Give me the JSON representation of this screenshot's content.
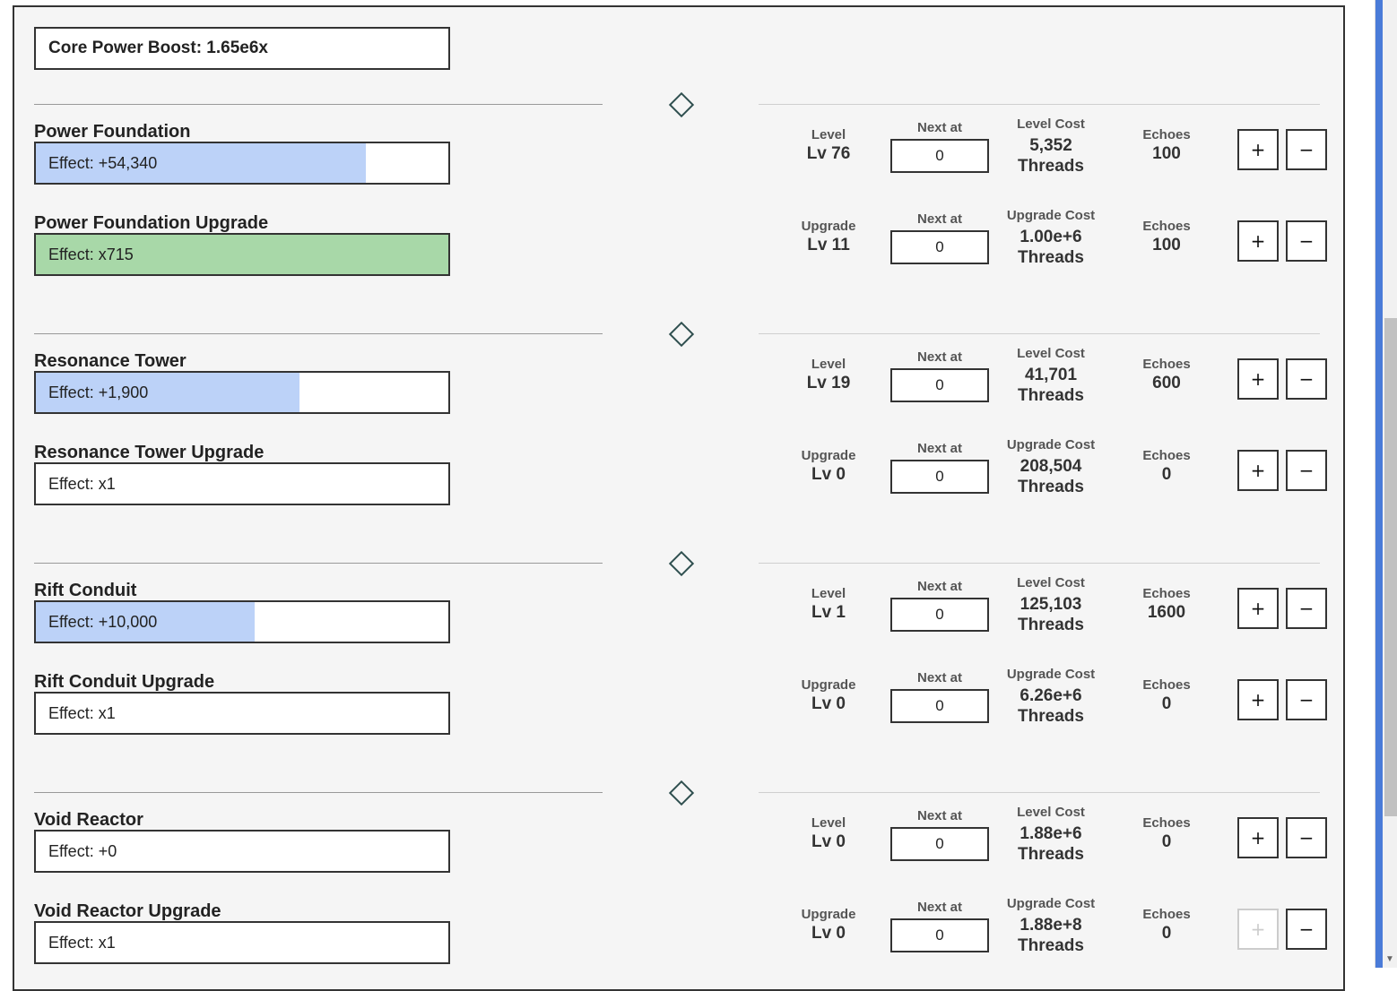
{
  "boost_label": "Core Power Boost: 1.65e6x",
  "labels": {
    "level": "Level",
    "upgrade": "Upgrade",
    "next_at": "Next at",
    "level_cost": "Level Cost",
    "upgrade_cost": "Upgrade Cost",
    "echoes": "Echoes",
    "plus": "+",
    "minus": "−"
  },
  "sections": [
    {
      "main": {
        "name": "Power Foundation",
        "effect": "Effect: +54,340",
        "fill": 0.8,
        "fill_color": "blue",
        "level": "Lv 76",
        "next_at": "0",
        "cost_amount": "5,352",
        "cost_unit": "Threads",
        "echoes": "100"
      },
      "upgrade": {
        "name": "Power Foundation Upgrade",
        "effect": "Effect: x715",
        "fill": 1.0,
        "fill_color": "green",
        "level": "Lv 11",
        "next_at": "0",
        "cost_amount": "1.00e+6",
        "cost_unit": "Threads",
        "echoes": "100"
      }
    },
    {
      "main": {
        "name": "Resonance Tower",
        "effect": "Effect: +1,900",
        "fill": 0.64,
        "fill_color": "blue",
        "level": "Lv 19",
        "next_at": "0",
        "cost_amount": "41,701",
        "cost_unit": "Threads",
        "echoes": "600"
      },
      "upgrade": {
        "name": "Resonance Tower Upgrade",
        "effect": "Effect: x1",
        "fill": 0,
        "fill_color": "blue",
        "level": "Lv 0",
        "next_at": "0",
        "cost_amount": "208,504",
        "cost_unit": "Threads",
        "echoes": "0"
      }
    },
    {
      "main": {
        "name": "Rift Conduit",
        "effect": "Effect: +10,000",
        "fill": 0.53,
        "fill_color": "blue",
        "level": "Lv 1",
        "next_at": "0",
        "cost_amount": "125,103",
        "cost_unit": "Threads",
        "echoes": "1600"
      },
      "upgrade": {
        "name": "Rift Conduit Upgrade",
        "effect": "Effect: x1",
        "fill": 0,
        "fill_color": "blue",
        "level": "Lv 0",
        "next_at": "0",
        "cost_amount": "6.26e+6",
        "cost_unit": "Threads",
        "echoes": "0"
      }
    },
    {
      "main": {
        "name": "Void Reactor",
        "effect": "Effect: +0",
        "fill": 0,
        "fill_color": "blue",
        "level": "Lv 0",
        "next_at": "0",
        "cost_amount": "1.88e+6",
        "cost_unit": "Threads",
        "echoes": "0"
      },
      "upgrade": {
        "name": "Void Reactor Upgrade",
        "effect": "Effect: x1",
        "fill": 0,
        "fill_color": "blue",
        "level": "Lv 0",
        "next_at": "0",
        "cost_amount": "1.88e+8",
        "cost_unit": "Threads",
        "echoes": "0",
        "plus_disabled": true
      }
    }
  ]
}
